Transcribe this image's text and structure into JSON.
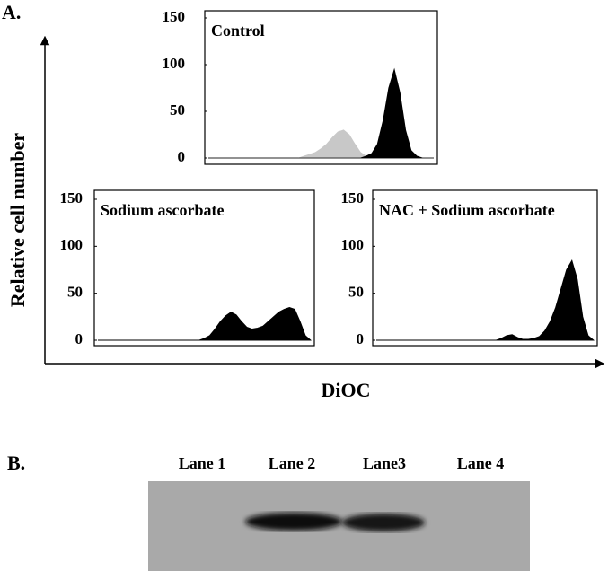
{
  "panel_a_label": "A.",
  "panel_b_label": "B.",
  "ylabel": "Relative cell number",
  "xlabel": "DiOC",
  "lanes": [
    "Lane 1",
    "Lane 2",
    "Lane3",
    "Lane 4"
  ],
  "chart_data": [
    {
      "type": "area",
      "title": "Control",
      "xlim": [
        0,
        4
      ],
      "ylim": [
        0,
        150
      ],
      "yticks": [
        0,
        50,
        100,
        150
      ],
      "x": [
        0,
        0.1,
        0.2,
        0.3,
        0.4,
        0.5,
        0.6,
        0.7,
        0.8,
        0.9,
        1,
        1.1,
        1.2,
        1.3,
        1.4,
        1.5,
        1.6,
        1.7,
        1.8,
        1.9,
        2,
        2.1,
        2.2,
        2.3,
        2.4,
        2.5,
        2.6,
        2.7,
        2.8,
        2.9,
        3,
        3.1,
        3.2,
        3.3,
        3.4,
        3.5,
        3.6,
        3.7,
        3.8,
        3.9,
        4
      ],
      "series": [
        {
          "color": "#c8c8c8",
          "values": [
            0,
            0,
            0,
            0,
            0,
            0,
            0,
            0,
            0,
            0,
            0,
            0,
            0,
            0,
            0,
            0,
            0,
            2,
            4,
            6,
            10,
            15,
            22,
            28,
            30,
            25,
            15,
            6,
            2,
            0,
            0,
            0,
            0,
            0,
            0,
            0,
            0,
            0,
            0,
            0,
            0
          ]
        },
        {
          "color": "#000000",
          "values": [
            0,
            0,
            0,
            0,
            0,
            0,
            0,
            0,
            0,
            0,
            0,
            0,
            0,
            0,
            0,
            0,
            0,
            0,
            0,
            0,
            0,
            0,
            0,
            0,
            0,
            0,
            0,
            0,
            2,
            5,
            15,
            40,
            75,
            95,
            70,
            30,
            8,
            2,
            0,
            0,
            0
          ]
        }
      ]
    },
    {
      "type": "area",
      "title": "Sodium ascorbate",
      "xlim": [
        0,
        4
      ],
      "ylim": [
        0,
        150
      ],
      "yticks": [
        0,
        50,
        100,
        150
      ],
      "x": [
        0,
        0.1,
        0.2,
        0.3,
        0.4,
        0.5,
        0.6,
        0.7,
        0.8,
        0.9,
        1,
        1.1,
        1.2,
        1.3,
        1.4,
        1.5,
        1.6,
        1.7,
        1.8,
        1.9,
        2,
        2.1,
        2.2,
        2.3,
        2.4,
        2.5,
        2.6,
        2.7,
        2.8,
        2.9,
        3,
        3.1,
        3.2,
        3.3,
        3.4,
        3.5,
        3.6,
        3.7,
        3.8,
        3.9,
        4
      ],
      "series": [
        {
          "color": "#000000",
          "values": [
            0,
            0,
            0,
            0,
            0,
            0,
            0,
            0,
            0,
            0,
            0,
            0,
            0,
            0,
            0,
            0,
            0,
            0,
            0,
            0,
            2,
            5,
            12,
            20,
            26,
            30,
            27,
            20,
            14,
            12,
            13,
            15,
            20,
            25,
            30,
            33,
            35,
            33,
            20,
            5,
            0
          ]
        }
      ]
    },
    {
      "type": "area",
      "title": "NAC + Sodium ascorbate",
      "xlim": [
        0,
        4
      ],
      "ylim": [
        0,
        150
      ],
      "yticks": [
        0,
        50,
        100,
        150
      ],
      "x": [
        0,
        0.1,
        0.2,
        0.3,
        0.4,
        0.5,
        0.6,
        0.7,
        0.8,
        0.9,
        1,
        1.1,
        1.2,
        1.3,
        1.4,
        1.5,
        1.6,
        1.7,
        1.8,
        1.9,
        2,
        2.1,
        2.2,
        2.3,
        2.4,
        2.5,
        2.6,
        2.7,
        2.8,
        2.9,
        3,
        3.1,
        3.2,
        3.3,
        3.4,
        3.5,
        3.6,
        3.7,
        3.8,
        3.9,
        4
      ],
      "series": [
        {
          "color": "#000000",
          "values": [
            0,
            0,
            0,
            0,
            0,
            0,
            0,
            0,
            0,
            0,
            0,
            0,
            0,
            0,
            0,
            0,
            0,
            0,
            0,
            0,
            0,
            0,
            0,
            2,
            5,
            6,
            3,
            1,
            1,
            2,
            4,
            10,
            20,
            35,
            55,
            75,
            85,
            65,
            25,
            5,
            0
          ]
        }
      ]
    }
  ]
}
